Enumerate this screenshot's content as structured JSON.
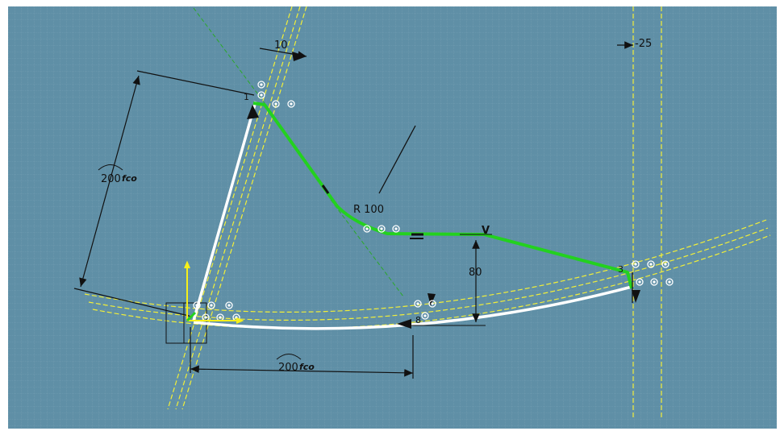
{
  "colors": {
    "background": "#5f8fa6",
    "grid": "#86aabb",
    "profile_white": "#ffffff",
    "profile_green": "#23d11f",
    "construction_yellow": "#f2ef38",
    "axis_yellow": "#f7f01a",
    "dimension_black": "#111111",
    "construction_green": "#2aa82a"
  },
  "dimensions": {
    "arc_length_left": "200",
    "arc_length_left_suffix": "fco",
    "arc_length_bottom": "200",
    "arc_length_bottom_suffix": "fco",
    "offset_top": "10",
    "offset_right": "-25",
    "radius": "R 100",
    "height": "80",
    "vertex_label": "V",
    "bottom_mid_label": "8",
    "left_top_label": "1",
    "right_label": "3"
  },
  "icons": {
    "constraint_symbols": "coincidence-constraint-icon",
    "axis": "sketch-axis-icon",
    "tangency": "tangency-constraint-icon"
  }
}
